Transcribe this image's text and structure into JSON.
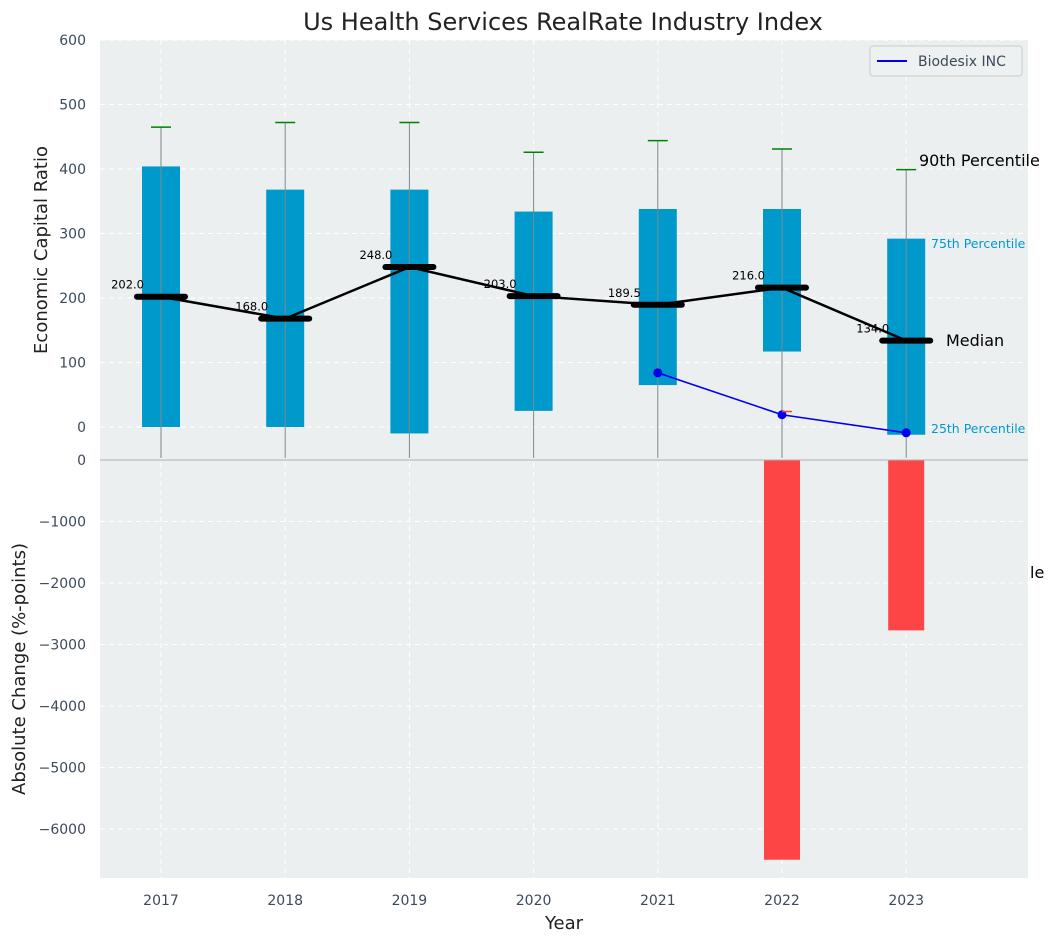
{
  "chart_data": [
    {
      "type": "bar",
      "title": "Us Health Services RealRate Industry Index",
      "ylabel": "Economic Capital Ratio",
      "ylim": [
        -50,
        600
      ],
      "yticks": [
        0,
        100,
        200,
        300,
        400,
        500,
        600
      ],
      "categories": [
        "2017",
        "2018",
        "2019",
        "2020",
        "2021",
        "2022",
        "2023"
      ],
      "percentile_bars": {
        "p25": [
          0,
          0,
          -10,
          25,
          65,
          117,
          -12
        ],
        "p75": [
          404,
          368,
          368,
          334,
          338,
          338,
          292
        ]
      },
      "whiskers_p90": [
        465,
        472,
        472,
        426,
        444,
        431,
        399
      ],
      "median": {
        "values": [
          202.0,
          168.0,
          248.0,
          203.0,
          189.5,
          216.0,
          134.0
        ],
        "labels": [
          "202.0",
          "168.0",
          "248.0",
          "203.0",
          "189.5",
          "216.0",
          "134.0"
        ]
      },
      "series": [
        {
          "name": "Biodesix INC",
          "color": "#0000ee",
          "x": [
            "2021",
            "2022",
            "2023"
          ],
          "values": [
            84,
            19,
            -9
          ]
        }
      ],
      "legend": {
        "position": "top-right",
        "entries": [
          "Biodesix INC"
        ]
      },
      "annotations": {
        "p90": "90th Percentile",
        "p75": "75th Percentile",
        "median": "Median",
        "p25": "25th Percentile"
      },
      "colors": {
        "bar": "#0099cc",
        "median": "#000000",
        "whisker": "#008000",
        "background": "#ebeff0"
      },
      "grid": true
    },
    {
      "type": "bar",
      "ylabel": "Absolute Change (%-points)",
      "xlabel": "Year",
      "ylim": [
        -6800,
        0
      ],
      "yticks": [
        0,
        -1000,
        -2000,
        -3000,
        -4000,
        -5000,
        -6000
      ],
      "ytick_labels": [
        "0",
        "−1000",
        "−2000",
        "−3000",
        "−4000",
        "−5000",
        "−6000"
      ],
      "categories": [
        "2017",
        "2018",
        "2019",
        "2020",
        "2021",
        "2022",
        "2023"
      ],
      "values": [
        0,
        0,
        0,
        0,
        0,
        -6500,
        -2770
      ],
      "annotation": "le",
      "colors": {
        "bar": "#ff3b3b"
      },
      "grid": true
    }
  ]
}
